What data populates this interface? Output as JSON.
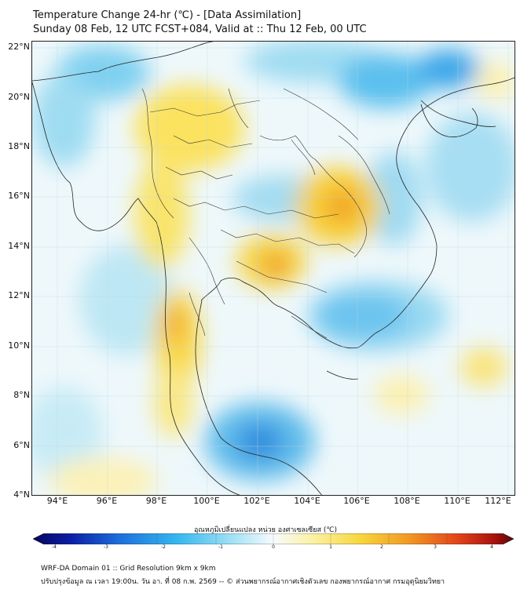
{
  "header": {
    "title": "Temperature Change 24-hr (℃) - [Data Assimilation]",
    "subtitle": "Sunday 08 Feb, 12 UTC FCST+084, Valid at :: Thu 12 Feb, 00 UTC"
  },
  "map": {
    "lat_labels": [
      "22°N",
      "20°N",
      "18°N",
      "16°N",
      "14°N",
      "12°N",
      "10°N",
      "8°N",
      "6°N",
      "4°N"
    ],
    "lon_labels": [
      "94°E",
      "96°E",
      "98°E",
      "100°E",
      "102°E",
      "104°E",
      "106°E",
      "108°E",
      "110°E",
      "112°E"
    ],
    "lat_range": [
      4,
      22.2
    ],
    "lon_range": [
      93,
      112.3
    ]
  },
  "colorbar": {
    "title": "อุณหภูมิเปลี่ยนแปลง หน่วย องศาเซลเซียส (℃)",
    "labels": [
      "-4",
      "-3",
      "-2",
      "-1",
      "0",
      "1",
      "2",
      "3",
      "4"
    ],
    "min": -4,
    "max": 4
  },
  "footer": {
    "line1": "WRF-DA Domain 01 :: Grid Resolution 9km x 9km",
    "line2": "ปรับปรุงข้อมูล ณ เวลา 19:00น. วัน อา. ที่ 08 ก.พ. 2569 -- © ส่วนพยากรณ์อากาศเชิงตัวเลข กองพยากรณ์อากาศ กรมอุตุนิยมวิทยา"
  },
  "colors": {
    "cold": "#1e78d6",
    "warm": "#ef7a18",
    "neutral": "#f7fbfd"
  }
}
